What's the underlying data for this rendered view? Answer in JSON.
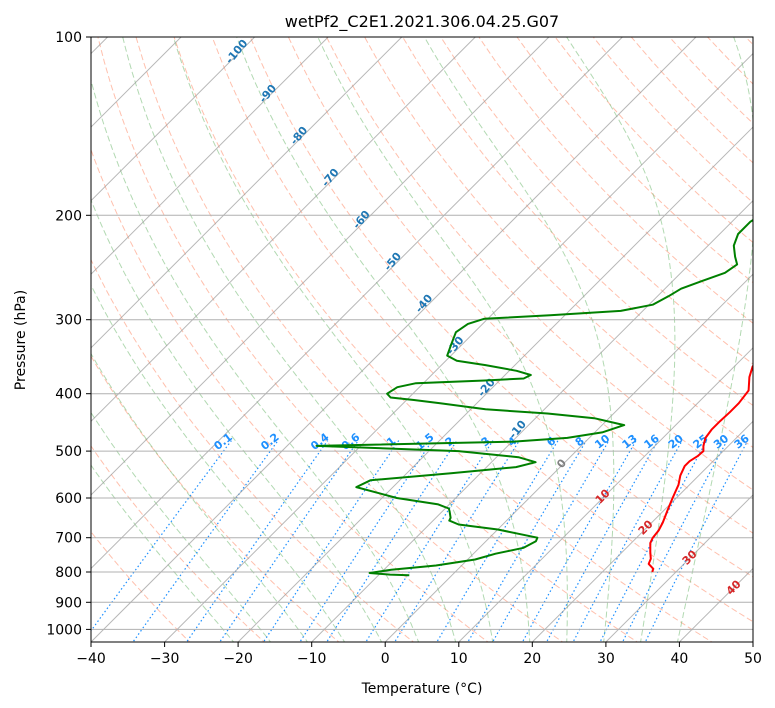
{
  "chart_data": {
    "type": "line",
    "title": "wetPf2_C2E1.2021.306.04.25.G07",
    "xlabel": "Temperature (°C)",
    "ylabel": "Pressure (hPa)",
    "xlim": [
      -40,
      50
    ],
    "ylim": [
      1050,
      100
    ],
    "yscale": "log",
    "x_ticks": [
      -40,
      -30,
      -20,
      -10,
      0,
      10,
      20,
      30,
      40,
      50
    ],
    "y_ticks": [
      1000,
      900,
      800,
      700,
      600,
      500,
      400,
      300,
      200,
      100
    ],
    "grid": true,
    "colors": {
      "temperature": "#ff0000",
      "dewpoint": "#008000",
      "isotherm": "#999999",
      "dry_adiabat": "#ff8c69",
      "moist_adiabat": "#7fbf7f",
      "mixing_ratio": "#1e90ff",
      "dry_adiabat_label": "#d62728",
      "moist_adiabat_label": "#1f77b4",
      "zero_label": "#808080"
    },
    "series": [
      {
        "key": "temperature",
        "points": [
          [
            26.8,
            800
          ],
          [
            26.5,
            790
          ],
          [
            25.2,
            775
          ],
          [
            24.8,
            760
          ],
          [
            23.8,
            740
          ],
          [
            22.6,
            715
          ],
          [
            22.2,
            700
          ],
          [
            22.0,
            680
          ],
          [
            21.5,
            660
          ],
          [
            20.5,
            630
          ],
          [
            19.5,
            600
          ],
          [
            18.5,
            570
          ],
          [
            17.5,
            550
          ],
          [
            16.8,
            530
          ],
          [
            16.8,
            520
          ],
          [
            17.2,
            510
          ],
          [
            17.3,
            500
          ],
          [
            16.6,
            490
          ],
          [
            15.8,
            475
          ],
          [
            15.5,
            460
          ],
          [
            15.5,
            445
          ],
          [
            15.6,
            430
          ],
          [
            15.6,
            415
          ],
          [
            15.2,
            395
          ],
          [
            13.5,
            375
          ],
          [
            12.5,
            360
          ],
          [
            12.0,
            340
          ],
          [
            10.8,
            320
          ],
          [
            9.0,
            300
          ],
          [
            7.0,
            280
          ],
          [
            4.5,
            260
          ],
          [
            2.5,
            245
          ],
          [
            0.5,
            230
          ],
          [
            -1.5,
            215
          ],
          [
            -3.5,
            200
          ],
          [
            -5.0,
            190
          ],
          [
            -7.2,
            175
          ],
          [
            -9.0,
            160
          ],
          [
            -11.2,
            145
          ],
          [
            -12.5,
            135
          ],
          [
            -13.4,
            125
          ],
          [
            -13.7,
            120
          ],
          [
            -13.8,
            115
          ],
          [
            -13.0,
            110
          ],
          [
            -12.5,
            105
          ],
          [
            -11.8,
            100
          ]
        ]
      },
      {
        "key": "dewpoint",
        "points": [
          [
            -5.8,
            810
          ],
          [
            -8.5,
            808
          ],
          [
            -11.5,
            803
          ],
          [
            -9.0,
            793
          ],
          [
            -3.5,
            780
          ],
          [
            1.0,
            762
          ],
          [
            3.0,
            745
          ],
          [
            6.0,
            728
          ],
          [
            6.8,
            710
          ],
          [
            6.5,
            700
          ],
          [
            0.0,
            678
          ],
          [
            -6.0,
            665
          ],
          [
            -7.8,
            655
          ],
          [
            -8.0,
            648
          ],
          [
            -8.5,
            640
          ],
          [
            -9.0,
            632
          ],
          [
            -9.5,
            625
          ],
          [
            -11.5,
            615
          ],
          [
            -18.0,
            600
          ],
          [
            -25.0,
            575
          ],
          [
            -24.0,
            560
          ],
          [
            -14.0,
            545
          ],
          [
            -6.0,
            532
          ],
          [
            -4.0,
            522
          ],
          [
            -7.0,
            512
          ],
          [
            -16.0,
            500
          ],
          [
            -36.0,
            490
          ],
          [
            -10.0,
            482
          ],
          [
            -3.0,
            475
          ],
          [
            1.0,
            465
          ],
          [
            3.0,
            452
          ],
          [
            -2.0,
            440
          ],
          [
            -9.0,
            432
          ],
          [
            -18.0,
            425
          ],
          [
            -25.0,
            415
          ],
          [
            -29.0,
            410
          ],
          [
            -32.5,
            406
          ],
          [
            -33.5,
            400
          ],
          [
            -33.0,
            390
          ],
          [
            -31.0,
            384
          ],
          [
            -22.0,
            380
          ],
          [
            -17.0,
            377
          ],
          [
            -16.5,
            372
          ],
          [
            -19.0,
            366
          ],
          [
            -24.0,
            358
          ],
          [
            -28.5,
            352
          ],
          [
            -30.5,
            345
          ],
          [
            -31.5,
            330
          ],
          [
            -32.5,
            315
          ],
          [
            -32.0,
            305
          ],
          [
            -30.5,
            299
          ],
          [
            -22.0,
            295
          ],
          [
            -13.0,
            290
          ],
          [
            -9.5,
            283
          ],
          [
            -8.5,
            274
          ],
          [
            -7.8,
            266
          ],
          [
            -6.0,
            258
          ],
          [
            -4.0,
            250
          ],
          [
            -3.5,
            242
          ],
          [
            -4.8,
            235
          ],
          [
            -6.5,
            225
          ],
          [
            -7.5,
            215
          ],
          [
            -7.5,
            205
          ],
          [
            -6.5,
            195
          ],
          [
            -5.5,
            185
          ],
          [
            -4.0,
            175
          ],
          [
            -2.5,
            165
          ],
          [
            -1.0,
            155
          ],
          [
            0.0,
            147
          ],
          [
            -0.8,
            140
          ],
          [
            -3.5,
            132
          ],
          [
            -6.5,
            125
          ],
          [
            -7.0,
            120
          ],
          [
            -5.5,
            115
          ],
          [
            -3.5,
            110
          ],
          [
            -2.5,
            105
          ],
          [
            -1.8,
            100
          ]
        ]
      }
    ],
    "mixing_ratio_labels": [
      "0.1",
      "0.2",
      "0.4",
      "0.6",
      "1",
      "1.5",
      "2",
      "3",
      "4",
      "6",
      "8",
      "10",
      "13",
      "16",
      "20",
      "25",
      "30",
      "36"
    ],
    "moist_adiabat_labels": [
      "-100",
      "-90",
      "-80",
      "-70",
      "-60",
      "-50",
      "-40",
      "-30",
      "-20",
      "-10"
    ],
    "zero_label": "0",
    "dry_adiabat_labels": [
      "10",
      "20",
      "30",
      "40"
    ]
  }
}
